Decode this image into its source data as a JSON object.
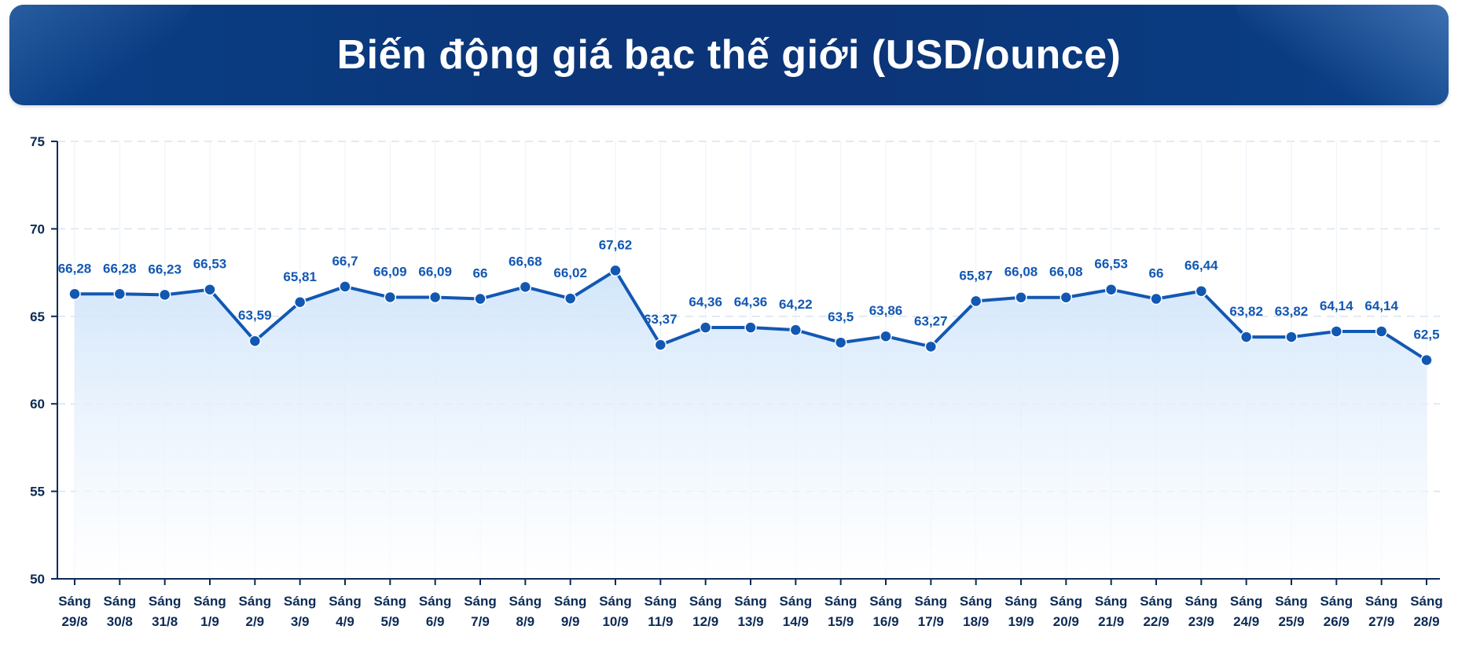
{
  "header": {
    "title": "Biến động giá bạc thế giới (USD/ounce)"
  },
  "colors": {
    "banner": "#0b3578",
    "line": "#1258b3",
    "area_top": "#cfe4fa",
    "area_bottom": "#ffffff",
    "axis": "#0b2a55",
    "grid": "#d9e3ef"
  },
  "chart_data": {
    "type": "line",
    "title": "Biến động giá bạc thế giới (USD/ounce)",
    "xlabel": "",
    "ylabel": "",
    "ylim": [
      50,
      75
    ],
    "yticks": [
      50,
      55,
      60,
      65,
      70,
      75
    ],
    "grid": true,
    "categories": [
      [
        "Sáng",
        "29/8"
      ],
      [
        "Sáng",
        "30/8"
      ],
      [
        "Sáng",
        "31/8"
      ],
      [
        "Sáng",
        "1/9"
      ],
      [
        "Sáng",
        "2/9"
      ],
      [
        "Sáng",
        "3/9"
      ],
      [
        "Sáng",
        "4/9"
      ],
      [
        "Sáng",
        "5/9"
      ],
      [
        "Sáng",
        "6/9"
      ],
      [
        "Sáng",
        "7/9"
      ],
      [
        "Sáng",
        "8/9"
      ],
      [
        "Sáng",
        "9/9"
      ],
      [
        "Sáng",
        "10/9"
      ],
      [
        "Sáng",
        "11/9"
      ],
      [
        "Sáng",
        "12/9"
      ],
      [
        "Sáng",
        "13/9"
      ],
      [
        "Sáng",
        "14/9"
      ],
      [
        "Sáng",
        "15/9"
      ],
      [
        "Sáng",
        "16/9"
      ],
      [
        "Sáng",
        "17/9"
      ],
      [
        "Sáng",
        "18/9"
      ],
      [
        "Sáng",
        "19/9"
      ],
      [
        "Sáng",
        "20/9"
      ],
      [
        "Sáng",
        "21/9"
      ],
      [
        "Sáng",
        "22/9"
      ],
      [
        "Sáng",
        "23/9"
      ],
      [
        "Sáng",
        "24/9"
      ],
      [
        "Sáng",
        "25/9"
      ],
      [
        "Sáng",
        "26/9"
      ],
      [
        "Sáng",
        "27/9"
      ],
      [
        "Sáng",
        "28/9"
      ]
    ],
    "values": [
      66.28,
      66.28,
      66.23,
      66.53,
      63.59,
      65.81,
      66.7,
      66.09,
      66.09,
      66,
      66.68,
      66.02,
      67.62,
      63.37,
      64.36,
      64.36,
      64.22,
      63.5,
      63.86,
      63.27,
      65.87,
      66.08,
      66.08,
      66.53,
      66,
      66.44,
      63.82,
      63.82,
      64.14,
      64.14,
      62.5
    ],
    "value_labels": [
      "66,28",
      "66,28",
      "66,23",
      "66,53",
      "63,59",
      "65,81",
      "66,7",
      "66,09",
      "66,09",
      "66",
      "66,68",
      "66,02",
      "67,62",
      "63,37",
      "64,36",
      "64,36",
      "64,22",
      "63,5",
      "63,86",
      "63,27",
      "65,87",
      "66,08",
      "66,08",
      "66,53",
      "66",
      "66,44",
      "63,82",
      "63,82",
      "64,14",
      "64,14",
      "62,5"
    ]
  }
}
